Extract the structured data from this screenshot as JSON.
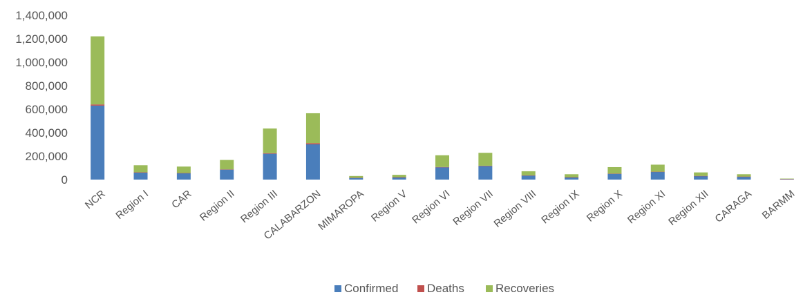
{
  "chart_data": {
    "type": "bar",
    "stacked": true,
    "categories": [
      "NCR",
      "Region I",
      "CAR",
      "Region II",
      "Region III",
      "CALABARZON",
      "MIMAROPA",
      "Region V",
      "Region VI",
      "Region VII",
      "Region VIII",
      "Region IX",
      "Region X",
      "Region XI",
      "Region XII",
      "CARAGA",
      "BARMM"
    ],
    "series": [
      {
        "name": "Confirmed",
        "color": "#4a7ebb",
        "values": [
          630000,
          60000,
          55000,
          85000,
          220000,
          300000,
          15000,
          20000,
          105000,
          115000,
          35000,
          20000,
          50000,
          65000,
          30000,
          25000,
          5000
        ]
      },
      {
        "name": "Deaths",
        "color": "#c0504d",
        "values": [
          10000,
          2000,
          1000,
          2000,
          5000,
          10000,
          500,
          500,
          2000,
          3000,
          1000,
          500,
          1000,
          2000,
          1000,
          500,
          500
        ]
      },
      {
        "name": "Recoveries",
        "color": "#9bbb59",
        "values": [
          580000,
          60000,
          55000,
          80000,
          210000,
          255000,
          15000,
          20000,
          100000,
          110000,
          35000,
          25000,
          55000,
          60000,
          30000,
          20000,
          3000
        ]
      }
    ],
    "ylim": [
      0,
      1400000
    ],
    "yticks": [
      "0",
      "200,000",
      "400,000",
      "600,000",
      "800,000",
      "1,000,000",
      "1,200,000",
      "1,400,000"
    ],
    "legend": "bottom",
    "grid": false
  }
}
